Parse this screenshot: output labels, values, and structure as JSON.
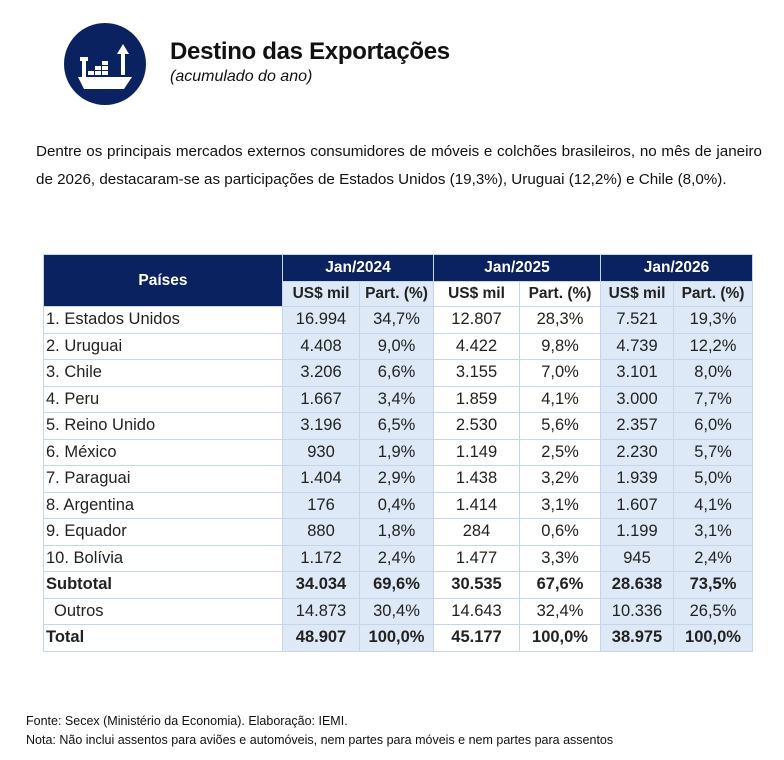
{
  "header": {
    "logo_icon": "cargo-ship-export-icon",
    "title": "Destino das Exportações",
    "subtitle": "(acumulado do ano)"
  },
  "intro": "Dentre os principais mercados externos consumidores de móveis e colchões brasileiros, no mês de janeiro de 2026, destacaram-se as participações de Estados Unidos (19,3%), Uruguai (12,2%) e Chile (8,0%).",
  "colors": {
    "header_bg": "#0b2260",
    "shade": "#dde9f6",
    "border": "#c5d6ea"
  },
  "table": {
    "country_header": "Países",
    "periods": [
      "Jan/2024",
      "Jan/2025",
      "Jan/2026"
    ],
    "sub_headers": [
      [
        "US$ mil",
        "Part.  (%)"
      ],
      [
        "US$ mil",
        "Part. (%)"
      ],
      [
        "US$ mil",
        "Part. (%)"
      ]
    ],
    "rows": [
      {
        "name": "1. Estados Unidos",
        "values": [
          "16.994",
          "34,7%",
          "12.807",
          "28,3%",
          "7.521",
          "19,3%"
        ]
      },
      {
        "name": "2. Uruguai",
        "values": [
          "4.408",
          "9,0%",
          "4.422",
          "9,8%",
          "4.739",
          "12,2%"
        ]
      },
      {
        "name": "3. Chile",
        "values": [
          "3.206",
          "6,6%",
          "3.155",
          "7,0%",
          "3.101",
          "8,0%"
        ]
      },
      {
        "name": "4. Peru",
        "values": [
          "1.667",
          "3,4%",
          "1.859",
          "4,1%",
          "3.000",
          "7,7%"
        ]
      },
      {
        "name": "5. Reino Unido",
        "values": [
          "3.196",
          "6,5%",
          "2.530",
          "5,6%",
          "2.357",
          "6,0%"
        ]
      },
      {
        "name": "6. México",
        "values": [
          "930",
          "1,9%",
          "1.149",
          "2,5%",
          "2.230",
          "5,7%"
        ]
      },
      {
        "name": "7. Paraguai",
        "values": [
          "1.404",
          "2,9%",
          "1.438",
          "3,2%",
          "1.939",
          "5,0%"
        ]
      },
      {
        "name": "8. Argentina",
        "values": [
          "176",
          "0,4%",
          "1.414",
          "3,1%",
          "1.607",
          "4,1%"
        ]
      },
      {
        "name": "9. Equador",
        "values": [
          "880",
          "1,8%",
          "284",
          "0,6%",
          "1.199",
          "3,1%"
        ]
      },
      {
        "name": "10. Bolívia",
        "values": [
          "1.172",
          "2,4%",
          "1.477",
          "3,3%",
          "945",
          "2,4%"
        ]
      },
      {
        "name": "Subtotal",
        "values": [
          "34.034",
          "69,6%",
          "30.535",
          "67,6%",
          "28.638",
          "73,5%"
        ],
        "bold": true
      },
      {
        "name": "Outros",
        "values": [
          "14.873",
          "30,4%",
          "14.643",
          "32,4%",
          "10.336",
          "26,5%"
        ],
        "indent": true
      },
      {
        "name": "Total",
        "values": [
          "48.907",
          "100,0%",
          "45.177",
          "100,0%",
          "38.975",
          "100,0%"
        ],
        "bold": true
      }
    ]
  },
  "footer": {
    "source": "Fonte: Secex (Ministério da Economia). Elaboração: IEMI.",
    "note": "Nota: Não inclui assentos para aviões e automóveis, nem partes para móveis e nem partes para assentos"
  }
}
